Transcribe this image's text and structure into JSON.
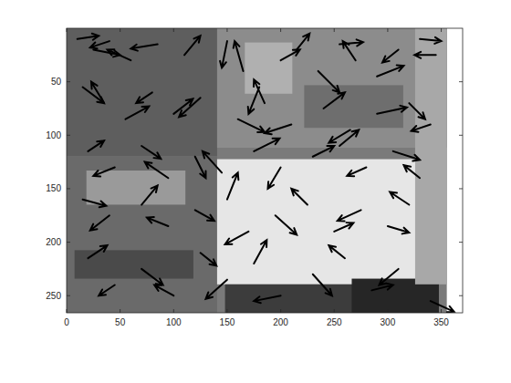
{
  "chart_data": {
    "type": "quiver",
    "color": "#000000",
    "grid": false,
    "xlim": [
      0,
      370
    ],
    "ylim": [
      0,
      266
    ],
    "xticks": [
      0,
      50,
      100,
      150,
      200,
      250,
      300,
      350
    ],
    "yticks": [
      50,
      100,
      150,
      200,
      250
    ],
    "x": [
      10,
      25,
      40,
      60,
      85,
      110,
      150,
      165,
      180,
      200,
      215,
      235,
      255,
      270,
      290,
      310,
      330,
      345,
      15,
      35,
      55,
      80,
      100,
      125,
      160,
      185,
      210,
      240,
      265,
      290,
      320,
      340,
      20,
      45,
      70,
      95,
      120,
      145,
      175,
      200,
      230,
      255,
      280,
      305,
      330,
      15,
      40,
      70,
      95,
      120,
      150,
      170,
      195,
      225,
      250,
      275,
      300,
      320,
      20,
      45,
      70,
      100,
      125,
      150,
      175,
      200,
      230,
      260,
      285,
      310,
      340
    ],
    "y": [
      10,
      20,
      12,
      30,
      15,
      25,
      12,
      40,
      55,
      30,
      20,
      40,
      15,
      30,
      45,
      20,
      10,
      25,
      55,
      70,
      85,
      60,
      80,
      65,
      85,
      70,
      90,
      75,
      95,
      80,
      70,
      90,
      115,
      130,
      110,
      140,
      120,
      135,
      115,
      130,
      120,
      110,
      130,
      115,
      140,
      160,
      175,
      165,
      185,
      170,
      160,
      190,
      175,
      165,
      190,
      170,
      185,
      165,
      215,
      240,
      225,
      250,
      210,
      235,
      220,
      250,
      230,
      215,
      245,
      225,
      255
    ],
    "u": [
      20,
      25,
      -18,
      -22,
      -25,
      15,
      -5,
      -8,
      -10,
      18,
      12,
      20,
      22,
      -12,
      25,
      -15,
      20,
      -20,
      20,
      -12,
      22,
      -15,
      18,
      -20,
      25,
      -10,
      -25,
      20,
      -20,
      28,
      15,
      -18,
      15,
      -20,
      18,
      -22,
      10,
      -18,
      24,
      -12,
      20,
      18,
      -18,
      25,
      -15,
      22,
      -18,
      15,
      -20,
      18,
      10,
      -22,
      20,
      -15,
      18,
      -22,
      20,
      -18,
      18,
      -15,
      20,
      -18,
      15,
      -20,
      12,
      -25,
      18,
      -15,
      20,
      -18,
      22
    ],
    "v": [
      -3,
      5,
      6,
      -10,
      4,
      -18,
      25,
      -28,
      25,
      -10,
      -15,
      20,
      -2,
      -18,
      -10,
      12,
      2,
      0,
      15,
      -20,
      -12,
      10,
      -14,
      18,
      12,
      -22,
      8,
      -15,
      12,
      -6,
      15,
      6,
      -10,
      8,
      12,
      -15,
      20,
      -20,
      -12,
      20,
      -10,
      -15,
      8,
      8,
      -12,
      6,
      14,
      -18,
      -8,
      10,
      -25,
      12,
      18,
      -15,
      -8,
      10,
      6,
      -12,
      -12,
      10,
      15,
      -10,
      12,
      18,
      -22,
      5,
      20,
      -12,
      -5,
      15,
      10
    ]
  }
}
